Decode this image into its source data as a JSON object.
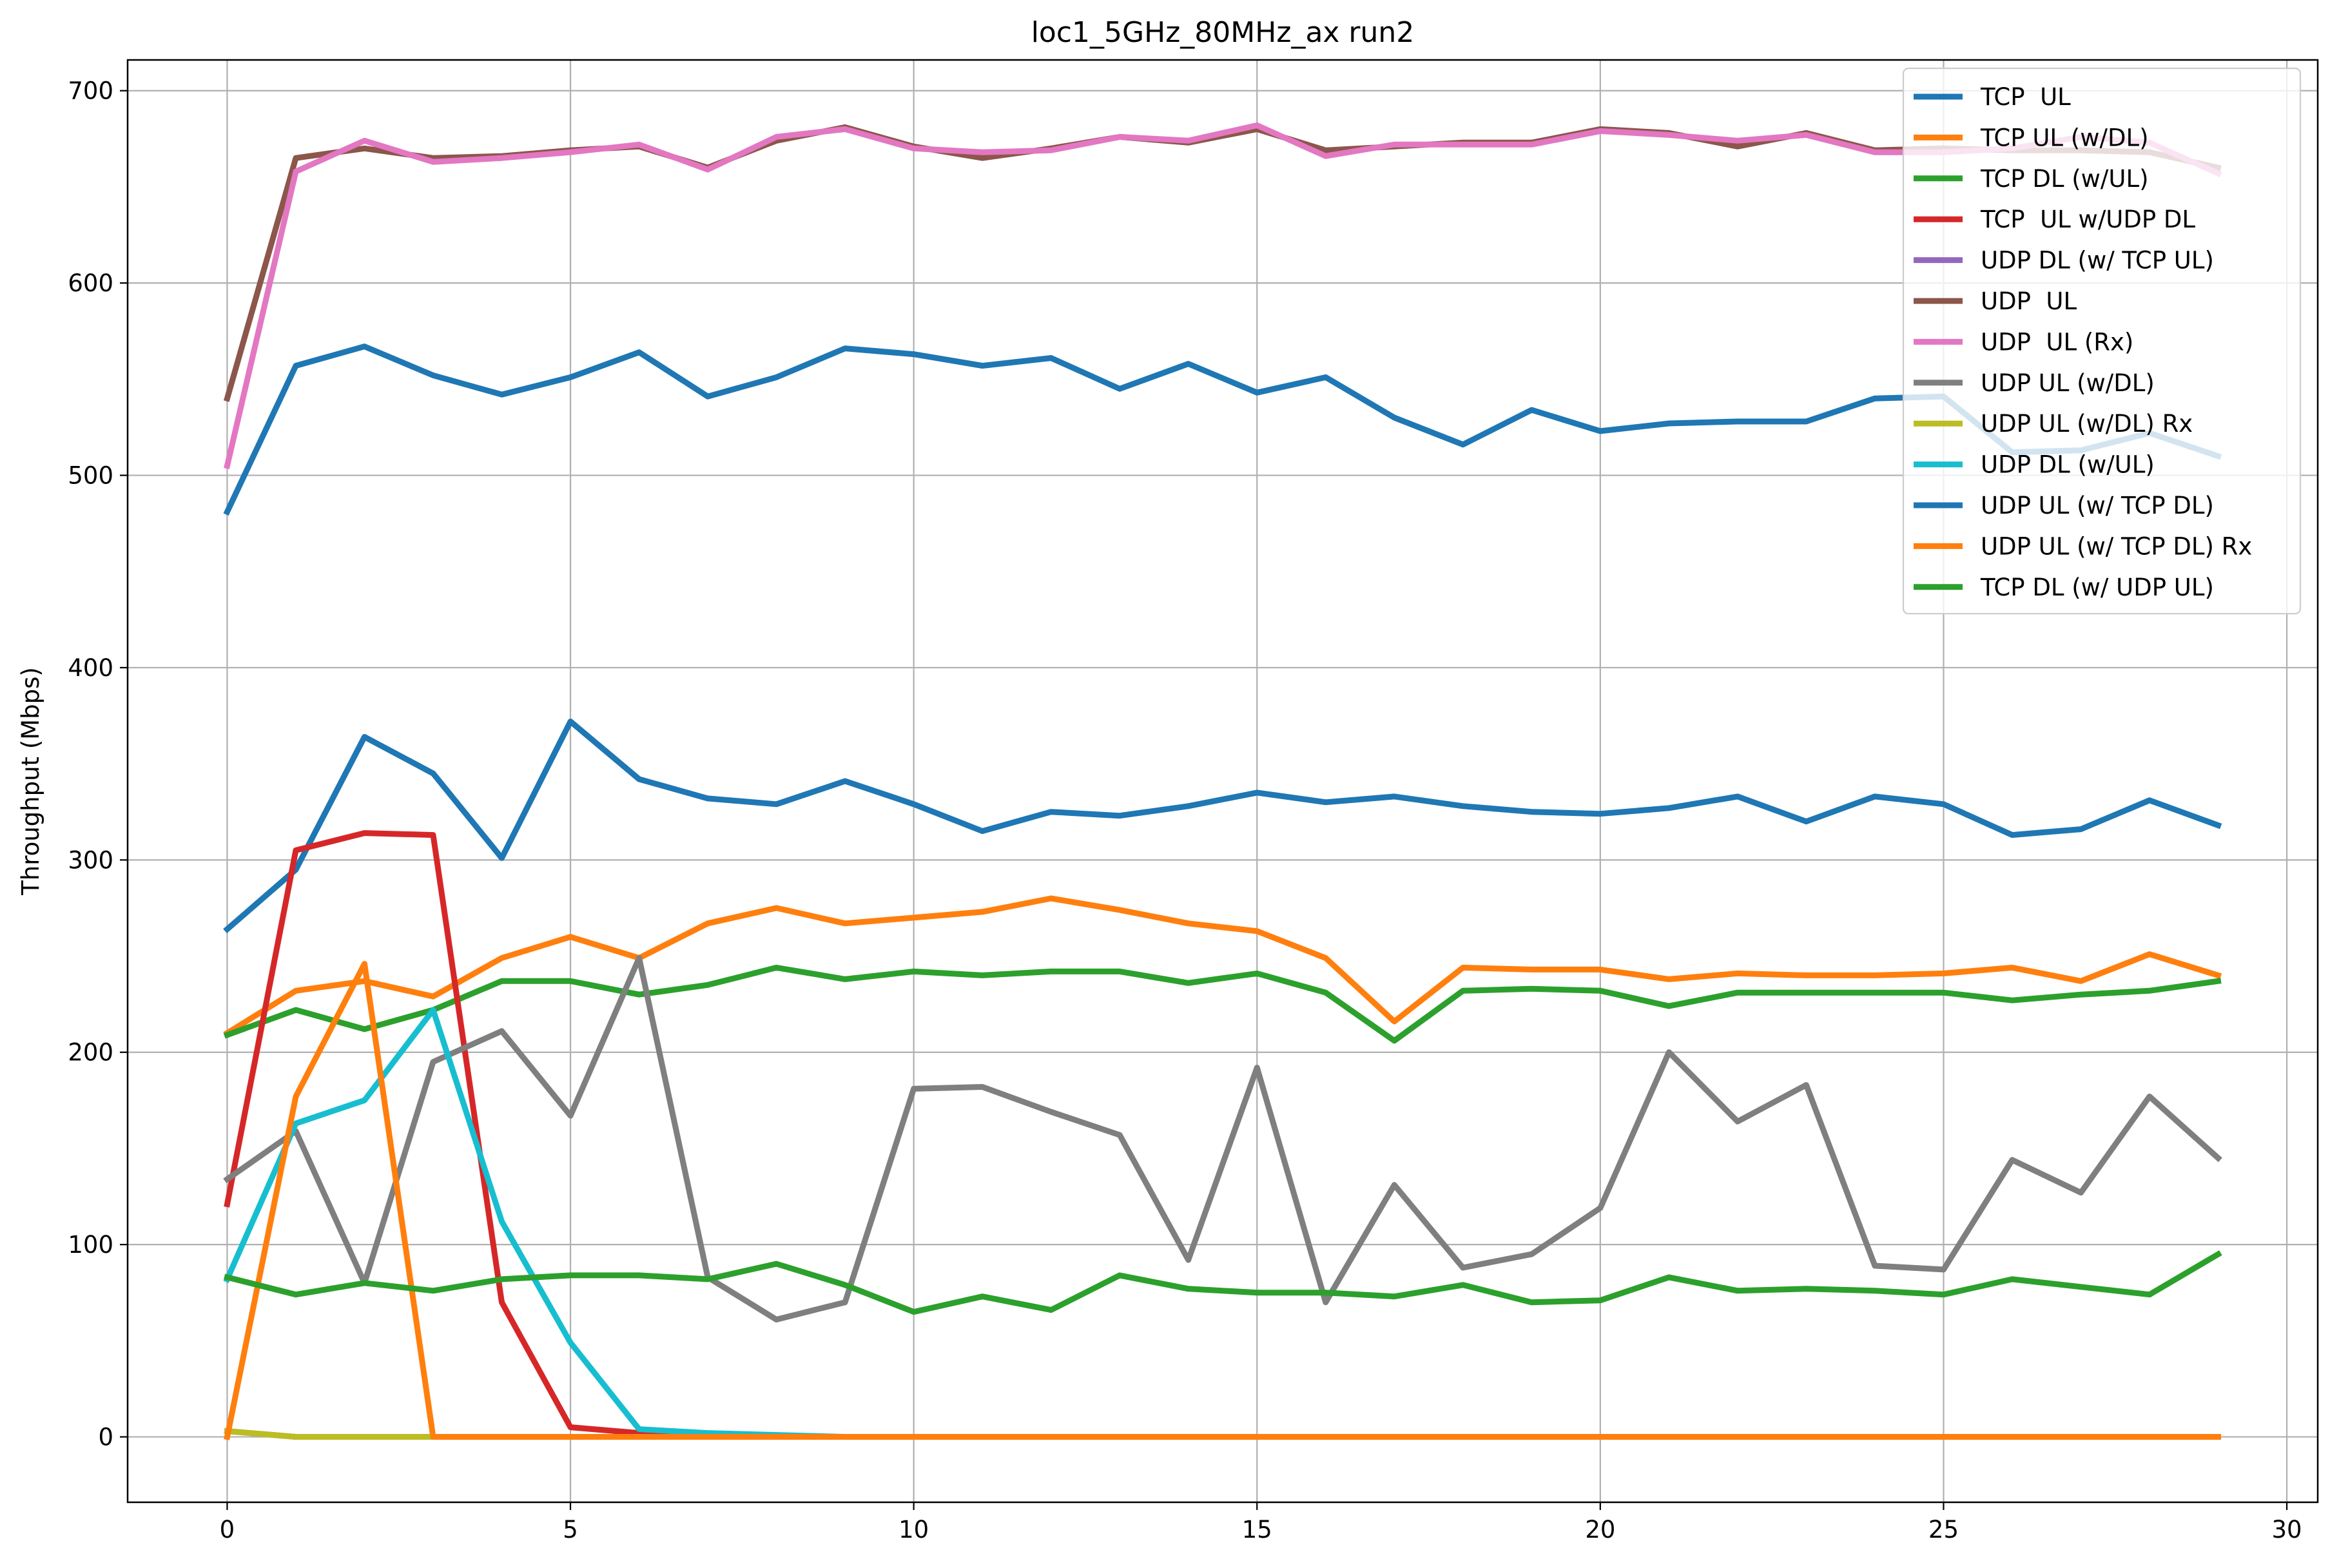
{
  "chart_data": {
    "type": "line",
    "title": "loc1_5GHz_80MHz_ax run2",
    "xlabel": "",
    "ylabel": "Throughput (Mbps)",
    "xlim": [
      -1.45,
      30.45
    ],
    "ylim": [
      -34,
      716
    ],
    "xticks": [
      0,
      5,
      10,
      15,
      20,
      25,
      30
    ],
    "yticks": [
      0,
      100,
      200,
      300,
      400,
      500,
      600,
      700
    ],
    "grid": true,
    "legend_position": "top-right",
    "x": [
      0,
      1,
      2,
      3,
      4,
      5,
      6,
      7,
      8,
      9,
      10,
      11,
      12,
      13,
      14,
      15,
      16,
      17,
      18,
      19,
      20,
      21,
      22,
      23,
      24,
      25,
      26,
      27,
      28,
      29
    ],
    "series": [
      {
        "name": "TCP  UL",
        "color": "#1f77b4",
        "values": [
          264,
          295,
          364,
          345,
          301,
          372,
          342,
          332,
          329,
          341,
          329,
          315,
          325,
          323,
          328,
          335,
          330,
          333,
          328,
          325,
          324,
          327,
          333,
          320,
          333,
          329,
          313,
          316,
          331,
          318
        ]
      },
      {
        "name": "TCP UL (w/DL)",
        "color": "#ff7f0e",
        "values": [
          210,
          232,
          237,
          229,
          249,
          260,
          249,
          267,
          275,
          267,
          270,
          273,
          280,
          274,
          267,
          263,
          249,
          216,
          244,
          243,
          243,
          238,
          241,
          240,
          240,
          241,
          244,
          237,
          251,
          240
        ]
      },
      {
        "name": "TCP DL (w/UL)",
        "color": "#2ca02c",
        "values": [
          209,
          222,
          212,
          222,
          237,
          237,
          230,
          235,
          244,
          238,
          242,
          240,
          242,
          242,
          236,
          241,
          231,
          206,
          232,
          233,
          232,
          224,
          231,
          231,
          231,
          231,
          227,
          230,
          232,
          237
        ]
      },
      {
        "name": "TCP  UL w/UDP DL",
        "color": "#d62728",
        "values": [
          121,
          305,
          314,
          313,
          70,
          5,
          2,
          0,
          0,
          0,
          0,
          0,
          0,
          0,
          0,
          0,
          0,
          0,
          0,
          0,
          0,
          0,
          0,
          0,
          0,
          0,
          0,
          0,
          0,
          0
        ]
      },
      {
        "name": "UDP DL (w/ TCP UL)",
        "color": "#9467bd",
        "values": [
          3,
          0,
          0,
          0,
          0,
          0,
          0,
          0,
          0,
          0,
          0,
          0,
          0,
          0,
          0,
          0,
          0,
          0,
          0,
          0,
          0,
          0,
          0,
          0,
          0,
          0,
          0,
          0,
          0,
          0
        ]
      },
      {
        "name": "UDP  UL",
        "color": "#8c564b",
        "values": [
          540,
          665,
          670,
          665,
          666,
          669,
          671,
          660,
          674,
          681,
          671,
          665,
          670,
          676,
          673,
          680,
          669,
          671,
          673,
          673,
          680,
          678,
          671,
          678,
          669,
          670,
          669,
          669,
          668,
          660
        ]
      },
      {
        "name": "UDP  UL (Rx)",
        "color": "#e377c2",
        "values": [
          505,
          658,
          674,
          663,
          665,
          668,
          672,
          659,
          676,
          680,
          670,
          668,
          669,
          676,
          674,
          682,
          666,
          672,
          672,
          672,
          679,
          677,
          674,
          677,
          668,
          668,
          670,
          676,
          673,
          657
        ]
      },
      {
        "name": "UDP UL (w/DL)",
        "color": "#7f7f7f",
        "values": [
          134,
          159,
          80,
          195,
          211,
          167,
          249,
          83,
          61,
          70,
          181,
          182,
          169,
          157,
          92,
          192,
          70,
          131,
          88,
          95,
          119,
          200,
          164,
          183,
          89,
          87,
          144,
          127,
          177,
          145
        ]
      },
      {
        "name": "UDP UL (w/DL) Rx",
        "color": "#bcbd22",
        "values": [
          3,
          0,
          0,
          0,
          0,
          0,
          0,
          0,
          0,
          0,
          0,
          0,
          0,
          0,
          0,
          0,
          0,
          0,
          0,
          0,
          0,
          0,
          0,
          0,
          0,
          0,
          0,
          0,
          0,
          0
        ]
      },
      {
        "name": "UDP DL (w/UL)",
        "color": "#17becf",
        "values": [
          82,
          163,
          175,
          222,
          112,
          49,
          4,
          2,
          1,
          0,
          0,
          0,
          0,
          0,
          0,
          0,
          0,
          0,
          0,
          0,
          0,
          0,
          0,
          0,
          0,
          0,
          0,
          0,
          0,
          0
        ]
      },
      {
        "name": "UDP UL (w/ TCP DL)",
        "color": "#1f77b4",
        "values": [
          481,
          557,
          567,
          552,
          542,
          551,
          564,
          541,
          551,
          566,
          563,
          557,
          561,
          545,
          558,
          543,
          551,
          530,
          516,
          534,
          523,
          527,
          528,
          528,
          540,
          541,
          512,
          513,
          522,
          510
        ]
      },
      {
        "name": "UDP UL (w/ TCP DL) Rx",
        "color": "#ff7f0e",
        "values": [
          0,
          177,
          246,
          0,
          0,
          0,
          0,
          0,
          0,
          0,
          0,
          0,
          0,
          0,
          0,
          0,
          0,
          0,
          0,
          0,
          0,
          0,
          0,
          0,
          0,
          0,
          0,
          0,
          0,
          0
        ]
      },
      {
        "name": "TCP DL (w/ UDP UL)",
        "color": "#2ca02c",
        "values": [
          83,
          74,
          80,
          76,
          82,
          84,
          84,
          82,
          90,
          79,
          65,
          73,
          66,
          84,
          77,
          75,
          75,
          73,
          79,
          70,
          71,
          83,
          76,
          77,
          76,
          74,
          82,
          78,
          74,
          95
        ]
      }
    ]
  }
}
